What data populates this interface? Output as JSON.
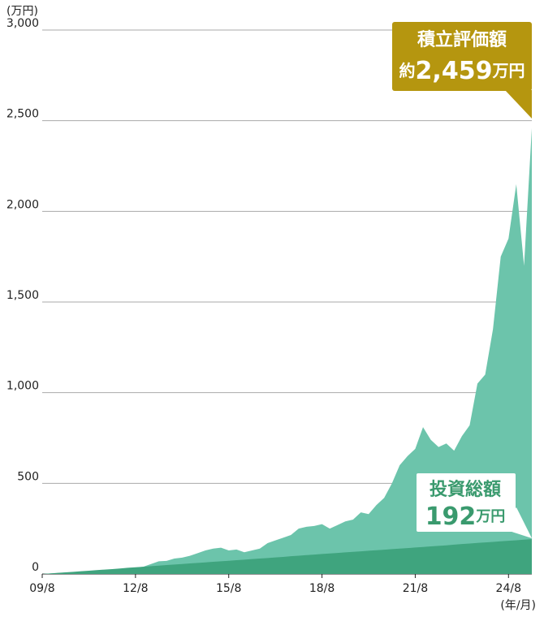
{
  "chart_data": {
    "type": "area",
    "y_label": "(万円)",
    "x_label": "(年/月)",
    "categories": [
      "09/8",
      null,
      null,
      null,
      null,
      null,
      null,
      null,
      null,
      null,
      null,
      null,
      "12/8",
      null,
      null,
      null,
      null,
      null,
      null,
      null,
      null,
      null,
      null,
      null,
      "15/8",
      null,
      null,
      null,
      null,
      null,
      null,
      null,
      null,
      null,
      null,
      null,
      "18/8",
      null,
      null,
      null,
      null,
      null,
      null,
      null,
      null,
      null,
      null,
      null,
      "21/8",
      null,
      null,
      null,
      null,
      null,
      null,
      null,
      null,
      null,
      null,
      null,
      "24/8",
      null,
      null,
      null
    ],
    "series": [
      {
        "name": "積立評価額",
        "color": "#6cc4ab",
        "values": [
          0,
          3,
          5,
          8,
          10,
          13,
          16,
          18,
          20,
          22,
          28,
          30,
          35,
          40,
          55,
          70,
          72,
          85,
          90,
          100,
          115,
          130,
          140,
          145,
          130,
          135,
          120,
          130,
          140,
          170,
          185,
          200,
          215,
          250,
          260,
          265,
          275,
          250,
          270,
          290,
          300,
          340,
          330,
          380,
          420,
          500,
          600,
          650,
          690,
          810,
          740,
          700,
          720,
          680,
          760,
          820,
          1050,
          1100,
          1350,
          1750,
          1850,
          2150,
          1700,
          2459
        ]
      },
      {
        "name": "投資総額",
        "color": "#3fa47e",
        "values": [
          0,
          3,
          6,
          9,
          12,
          15,
          18,
          21,
          24,
          27,
          30,
          34,
          37,
          40,
          43,
          46,
          49,
          52,
          55,
          58,
          61,
          64,
          67,
          70,
          73,
          76,
          79,
          82,
          85,
          88,
          91,
          94,
          98,
          101,
          104,
          107,
          110,
          113,
          116,
          119,
          122,
          125,
          128,
          131,
          134,
          137,
          140,
          143,
          146,
          149,
          152,
          155,
          158,
          162,
          165,
          168,
          171,
          174,
          177,
          180,
          183,
          186,
          189,
          192
        ]
      }
    ],
    "annotations": [
      {
        "color": "#b5960f",
        "prefix": "約",
        "value": "2,459",
        "unit": "万円"
      },
      {
        "color": "#3a9a6e",
        "value": "192",
        "unit": "万円"
      }
    ],
    "ylim": [
      0,
      3000
    ],
    "yticks": [
      0,
      500,
      {
        "value": 1000,
        "label": "1,000"
      },
      {
        "value": 1500,
        "label": "1,500"
      },
      {
        "value": 2000,
        "label": "2,000"
      },
      {
        "value": 2500,
        "label": "2,500"
      },
      {
        "value": 3000,
        "label": "3,000"
      }
    ],
    "grid": true
  }
}
